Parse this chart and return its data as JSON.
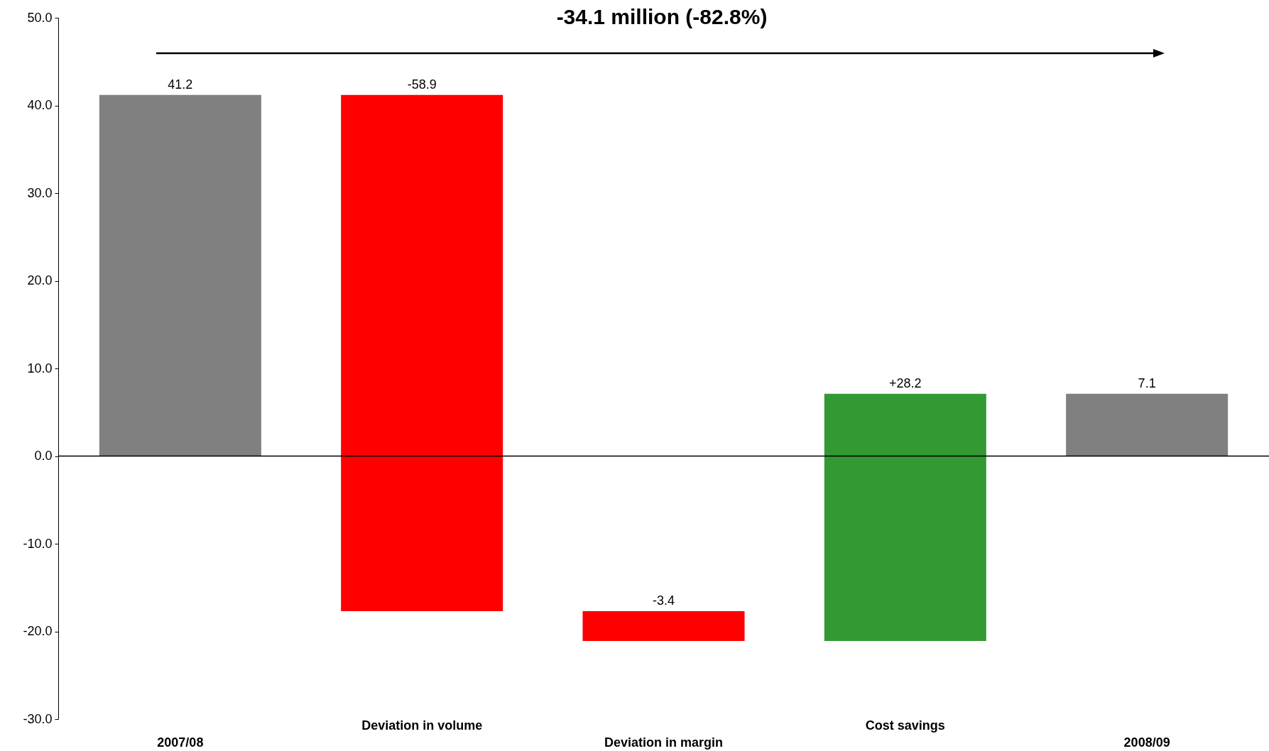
{
  "chart_data": {
    "type": "bar",
    "categories": [
      "2007/08",
      "Deviation in volume",
      "Deviation in margin",
      "Cost savings",
      "2008/09"
    ],
    "values": [
      41.2,
      -58.9,
      -3.4,
      28.2,
      7.1
    ],
    "base": [
      0,
      41.2,
      -17.7,
      -21.1,
      0
    ],
    "colors": [
      "#808080",
      "#ff0000",
      "#ff0000",
      "#339933",
      "#808080"
    ],
    "value_labels": [
      "41.2",
      "-58.9",
      "-3.4",
      "+28.2",
      "7.1"
    ],
    "ylim": [
      -30,
      50
    ],
    "yticks": [
      {
        "value": -30,
        "label": "-30.0"
      },
      {
        "value": -20,
        "label": "-20.0"
      },
      {
        "value": -10,
        "label": "-10.0"
      },
      {
        "value": 0,
        "label": "0.0"
      },
      {
        "value": 10,
        "label": "10.0"
      },
      {
        "value": 20,
        "label": "20.0"
      },
      {
        "value": 30,
        "label": "30.0"
      },
      {
        "value": 40,
        "label": "40.0"
      },
      {
        "value": 50,
        "label": "50.0"
      }
    ],
    "ref_lines": [
      {
        "axis": "y",
        "value": 0,
        "color": "#000000"
      }
    ],
    "annotations": [
      "-34.1 million (-82.8%)"
    ]
  }
}
